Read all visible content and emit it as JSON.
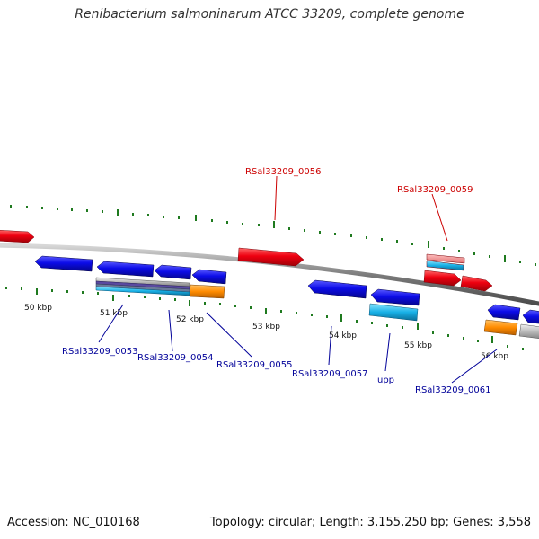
{
  "title": "Renibacterium salmoninarum ATCC 33209, complete genome",
  "accession": "Accession: NC_010168",
  "summary": "Topology: circular; Length: 3,155,250 bp; Genes: 3,558",
  "colors": {
    "backbone": "#8a8a8a",
    "tick": "#1f7a1f",
    "forward_gene": "#e0001b",
    "reverse_gene": "#1010e0",
    "rna_light_blue": "#1ab4e6",
    "orange": "#ff8c00",
    "grey": "#b0b0b0",
    "forward_label": "#cc0000",
    "reverse_label": "#000099"
  },
  "ticks": {
    "labels": [
      "50 kbp",
      "51 kbp",
      "52 kbp",
      "53 kbp",
      "54 kbp",
      "55 kbp",
      "56 kbp"
    ]
  },
  "gene_labels": {
    "forward": [
      "RSal33209_0056",
      "RSal33209_0059"
    ],
    "reverse": [
      "RSal33209_0053",
      "RSal33209_0054",
      "RSal33209_0055",
      "RSal33209_0057",
      "upp",
      "RSal33209_0061"
    ]
  }
}
